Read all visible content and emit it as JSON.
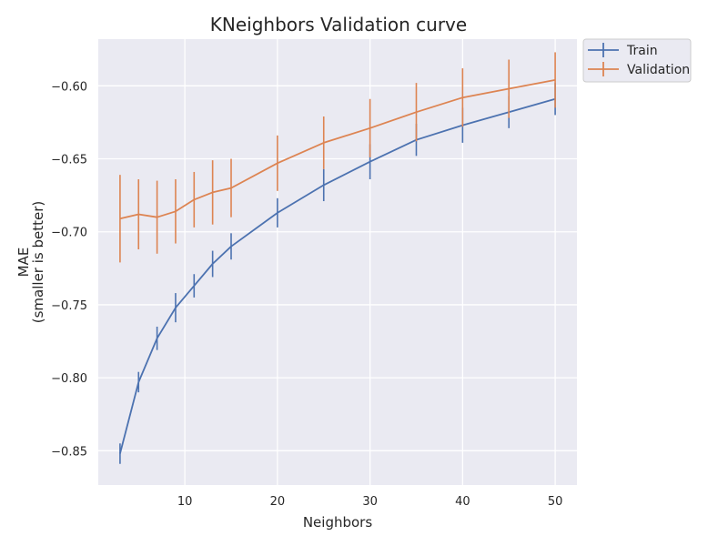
{
  "chart_data": {
    "type": "line",
    "title": "KNeighbors Validation curve",
    "xlabel": "Neighbors",
    "ylabel_lines": [
      "MAE",
      "(smaller is better)"
    ],
    "xlim": [
      0.65,
      52.35
    ],
    "ylim": [
      -0.8735,
      -0.568
    ],
    "xticks": [
      10,
      20,
      30,
      40,
      50
    ],
    "yticks": [
      -0.85,
      -0.8,
      -0.75,
      -0.7,
      -0.65,
      -0.6
    ],
    "ytick_labels": [
      "−0.85",
      "−0.80",
      "−0.75",
      "−0.70",
      "−0.65",
      "−0.60"
    ],
    "grid": true,
    "legend_position": "outside-top-right",
    "x": [
      3,
      5,
      7,
      9,
      11,
      13,
      15,
      20,
      25,
      30,
      35,
      40,
      45,
      50
    ],
    "series": [
      {
        "name": "Train",
        "color": "#4c72b0",
        "values": [
          -0.852,
          -0.803,
          -0.773,
          -0.752,
          -0.737,
          -0.722,
          -0.71,
          -0.687,
          -0.668,
          -0.652,
          -0.637,
          -0.627,
          -0.618,
          -0.609
        ],
        "errors": [
          0.007,
          0.007,
          0.008,
          0.01,
          0.008,
          0.009,
          0.009,
          0.01,
          0.011,
          0.012,
          0.011,
          0.012,
          0.011,
          0.011
        ]
      },
      {
        "name": "Validation",
        "color": "#dd8452",
        "values": [
          -0.691,
          -0.688,
          -0.69,
          -0.686,
          -0.678,
          -0.673,
          -0.67,
          -0.653,
          -0.639,
          -0.629,
          -0.618,
          -0.608,
          -0.602,
          -0.596
        ],
        "errors": [
          0.03,
          0.024,
          0.025,
          0.022,
          0.019,
          0.022,
          0.02,
          0.019,
          0.018,
          0.02,
          0.02,
          0.02,
          0.02,
          0.019
        ]
      }
    ]
  }
}
